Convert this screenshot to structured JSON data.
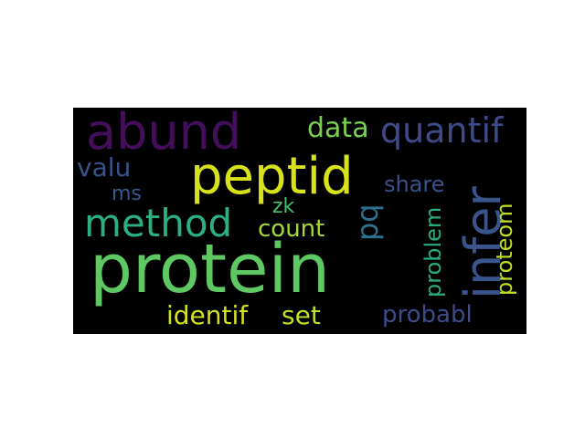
{
  "word_cloud": {
    "background": "#000000",
    "words": [
      {
        "key": "protein",
        "text": "protein",
        "color": "#5ec962"
      },
      {
        "key": "peptid",
        "text": "peptid",
        "color": "#d8e219"
      },
      {
        "key": "abund",
        "text": "abund",
        "color": "#440f5a"
      },
      {
        "key": "method",
        "text": "method",
        "color": "#2bb07f"
      },
      {
        "key": "infer",
        "text": "infer",
        "color": "#3a548c"
      },
      {
        "key": "quantif",
        "text": "quantif",
        "color": "#3e4a89"
      },
      {
        "key": "data",
        "text": "data",
        "color": "#7ad151"
      },
      {
        "key": "valu",
        "text": "valu",
        "color": "#3a528b"
      },
      {
        "key": "ms",
        "text": "ms",
        "color": "#38598c"
      },
      {
        "key": "zk",
        "text": "zk",
        "color": "#46c06f"
      },
      {
        "key": "count",
        "text": "count",
        "color": "#a2da37"
      },
      {
        "key": "pq",
        "text": "pq",
        "color": "#2c728e"
      },
      {
        "key": "share",
        "text": "share",
        "color": "#3a528b"
      },
      {
        "key": "problem",
        "text": "problem",
        "color": "#27ad81"
      },
      {
        "key": "proteom",
        "text": "proteom",
        "color": "#bddf26"
      },
      {
        "key": "identif",
        "text": "identif",
        "color": "#d2e21b"
      },
      {
        "key": "set",
        "text": "set",
        "color": "#c2df23"
      },
      {
        "key": "probabl",
        "text": "probabl",
        "color": "#3e4c8a"
      }
    ]
  }
}
